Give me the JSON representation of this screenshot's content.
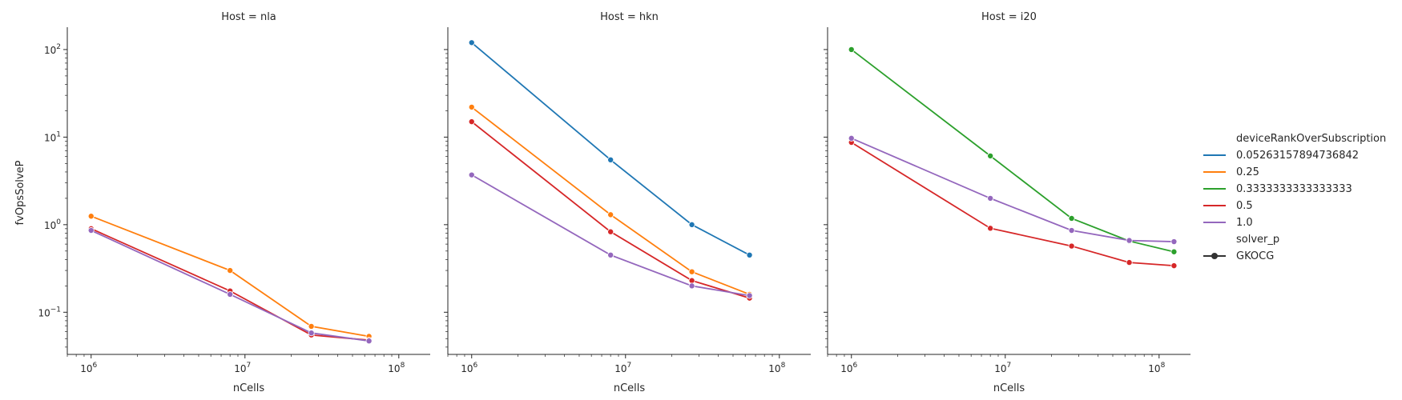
{
  "chart_data": {
    "type": "line",
    "y_label": "fvOpsSolveP",
    "x_label": "nCells",
    "x_scale": "log",
    "y_scale": "log",
    "xlim": [
      700000,
      160000000
    ],
    "ylim": [
      0.033,
      180
    ],
    "x_tick_base": "10",
    "x_tick_exponents": [
      "6",
      "7",
      "8"
    ],
    "y_tick_base": "10",
    "y_tick_exponents": [
      "−1",
      "0",
      "1",
      "2"
    ],
    "legend": {
      "placement": "right",
      "hue_title": "deviceRankOverSubscription",
      "style_title": "solver_p",
      "style_entries": [
        {
          "label": "GKOCG",
          "color": "#333333"
        }
      ],
      "entries": [
        {
          "label": "0.05263157894736842",
          "color": "#1f77b4"
        },
        {
          "label": "0.25",
          "color": "#ff7f0e"
        },
        {
          "label": "0.3333333333333333",
          "color": "#2ca02c"
        },
        {
          "label": "0.5",
          "color": "#d62728"
        },
        {
          "label": "1.0",
          "color": "#9467bd"
        }
      ]
    },
    "panels": [
      {
        "title": "Host = nla",
        "series": [
          {
            "name": "0.25",
            "color": "#ff7f0e",
            "x": [
              1000000,
              8000000,
              27000000,
              64000000
            ],
            "y": [
              1.25,
              0.3,
              0.069,
              0.053
            ]
          },
          {
            "name": "0.5",
            "color": "#d62728",
            "x": [
              1000000,
              8000000,
              27000000,
              64000000
            ],
            "y": [
              0.9,
              0.175,
              0.055,
              0.048
            ]
          },
          {
            "name": "1.0",
            "color": "#9467bd",
            "x": [
              1000000,
              8000000,
              27000000,
              64000000
            ],
            "y": [
              0.86,
              0.16,
              0.058,
              0.047
            ]
          }
        ]
      },
      {
        "title": "Host = hkn",
        "series": [
          {
            "name": "0.05263157894736842",
            "color": "#1f77b4",
            "x": [
              1000000,
              8000000,
              27000000,
              64000000
            ],
            "y": [
              120,
              5.5,
              1.0,
              0.45
            ]
          },
          {
            "name": "0.25",
            "color": "#ff7f0e",
            "x": [
              1000000,
              8000000,
              27000000,
              64000000
            ],
            "y": [
              22,
              1.3,
              0.29,
              0.16
            ]
          },
          {
            "name": "0.5",
            "color": "#d62728",
            "x": [
              1000000,
              8000000,
              27000000,
              64000000
            ],
            "y": [
              15,
              0.83,
              0.23,
              0.145
            ]
          },
          {
            "name": "1.0",
            "color": "#9467bd",
            "x": [
              1000000,
              8000000,
              27000000,
              64000000
            ],
            "y": [
              3.7,
              0.45,
              0.2,
              0.155
            ]
          }
        ]
      },
      {
        "title": "Host = i20",
        "series": [
          {
            "name": "0.3333333333333333",
            "color": "#2ca02c",
            "x": [
              1000000,
              8000000,
              27000000,
              64000000,
              125000000
            ],
            "y": [
              100,
              6.1,
              1.18,
              0.65,
              0.49
            ]
          },
          {
            "name": "0.5",
            "color": "#d62728",
            "x": [
              1000000,
              8000000,
              27000000,
              64000000,
              125000000
            ],
            "y": [
              8.7,
              0.91,
              0.57,
              0.37,
              0.34
            ]
          },
          {
            "name": "1.0",
            "color": "#9467bd",
            "x": [
              1000000,
              8000000,
              27000000,
              64000000,
              125000000
            ],
            "y": [
              9.7,
              2.0,
              0.86,
              0.66,
              0.64
            ]
          }
        ]
      }
    ]
  }
}
